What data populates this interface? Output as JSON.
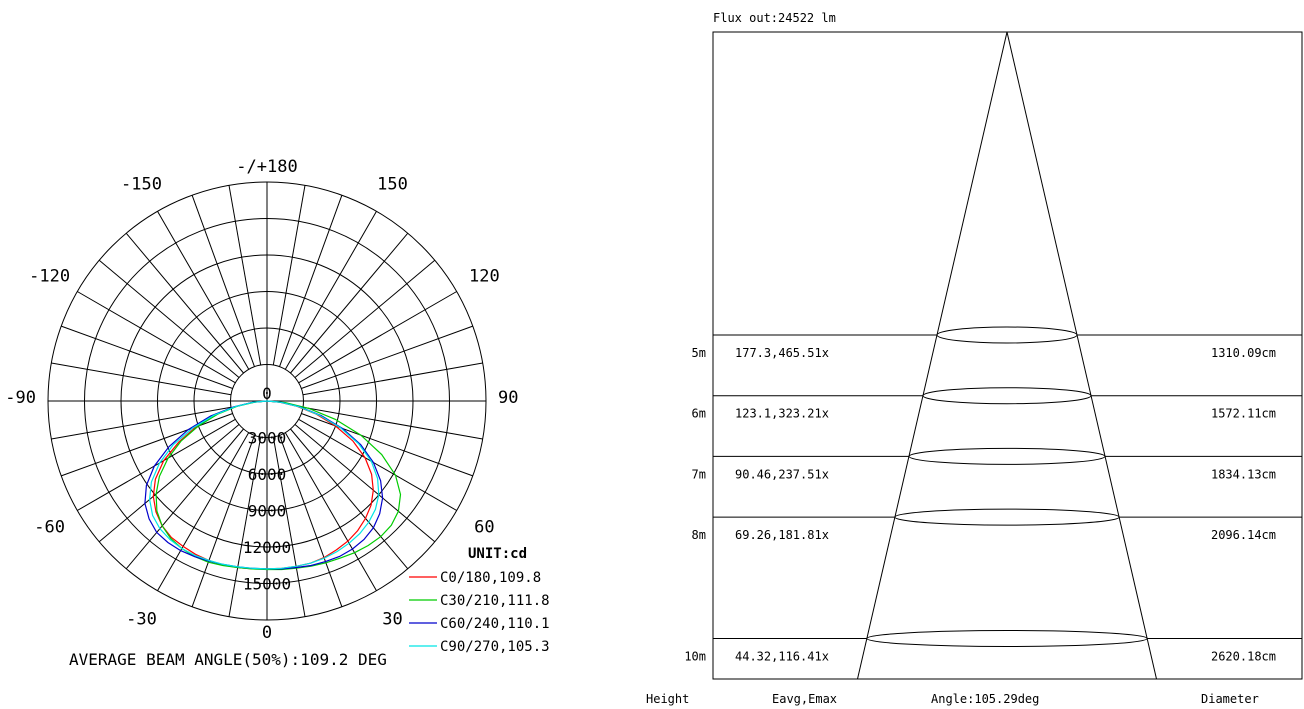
{
  "chart_data": [
    {
      "type": "polar",
      "title": "AVERAGE BEAM ANGLE(50%):109.2 DEG",
      "unit_label": "UNIT:cd",
      "max_value": 18000,
      "radial_ticks": [
        3000,
        6000,
        9000,
        12000,
        15000
      ],
      "radial_tick_labels": [
        "3000",
        "6000",
        "9000",
        "12000",
        "15000"
      ],
      "center_label": "0",
      "angle_labels": [
        {
          "angle": 180,
          "text": "-/+180"
        },
        {
          "angle": -150,
          "text": "-150"
        },
        {
          "angle": 150,
          "text": "150"
        },
        {
          "angle": -120,
          "text": "-120"
        },
        {
          "angle": 120,
          "text": "120"
        },
        {
          "angle": -90,
          "text": "-90"
        },
        {
          "angle": 90,
          "text": "90"
        },
        {
          "angle": -60,
          "text": "-60"
        },
        {
          "angle": 60,
          "text": "60"
        },
        {
          "angle": -30,
          "text": "-30"
        },
        {
          "angle": 30,
          "text": "30"
        },
        {
          "angle": 0,
          "text": "0"
        }
      ],
      "series": [
        {
          "name": "C0/180,109.8",
          "color": "#ff0000",
          "points": [
            [
              -90,
              0
            ],
            [
              -85,
              1100
            ],
            [
              -80,
              2600
            ],
            [
              -75,
              4300
            ],
            [
              -70,
              6200
            ],
            [
              -65,
              8000
            ],
            [
              -60,
              9800
            ],
            [
              -55,
              11200
            ],
            [
              -50,
              12200
            ],
            [
              -45,
              12900
            ],
            [
              -40,
              13400
            ],
            [
              -35,
              13700
            ],
            [
              -30,
              13800
            ],
            [
              -25,
              13900
            ],
            [
              -20,
              13950
            ],
            [
              -15,
              13950
            ],
            [
              -10,
              13900
            ],
            [
              -5,
              13850
            ],
            [
              0,
              13800
            ],
            [
              5,
              13800
            ],
            [
              10,
              13800
            ],
            [
              15,
              13800
            ],
            [
              20,
              13700
            ],
            [
              25,
              13500
            ],
            [
              30,
              13300
            ],
            [
              35,
              13000
            ],
            [
              40,
              12600
            ],
            [
              45,
              12100
            ],
            [
              50,
              11400
            ],
            [
              55,
              10500
            ],
            [
              60,
              9300
            ],
            [
              65,
              7800
            ],
            [
              70,
              6000
            ],
            [
              75,
              4200
            ],
            [
              80,
              2500
            ],
            [
              85,
              1000
            ],
            [
              90,
              0
            ]
          ]
        },
        {
          "name": "C30/210,111.8",
          "color": "#00cc00",
          "points": [
            [
              -90,
              0
            ],
            [
              -85,
              1000
            ],
            [
              -80,
              2500
            ],
            [
              -75,
              4200
            ],
            [
              -70,
              6000
            ],
            [
              -65,
              7800
            ],
            [
              -60,
              9400
            ],
            [
              -55,
              10800
            ],
            [
              -50,
              11900
            ],
            [
              -45,
              12800
            ],
            [
              -40,
              13400
            ],
            [
              -35,
              13800
            ],
            [
              -30,
              14000
            ],
            [
              -25,
              14100
            ],
            [
              -20,
              14100
            ],
            [
              -15,
              14000
            ],
            [
              -10,
              13900
            ],
            [
              -5,
              13850
            ],
            [
              0,
              13850
            ],
            [
              5,
              13900
            ],
            [
              10,
              13950
            ],
            [
              15,
              14050
            ],
            [
              20,
              14150
            ],
            [
              25,
              14250
            ],
            [
              30,
              14400
            ],
            [
              35,
              14500
            ],
            [
              40,
              14550
            ],
            [
              45,
              14450
            ],
            [
              50,
              14100
            ],
            [
              55,
              13400
            ],
            [
              60,
              12200
            ],
            [
              65,
              10400
            ],
            [
              70,
              8200
            ],
            [
              75,
              5800
            ],
            [
              80,
              3500
            ],
            [
              85,
              1500
            ],
            [
              90,
              0
            ]
          ]
        },
        {
          "name": "C60/240,110.1",
          "color": "#0000cc",
          "points": [
            [
              -90,
              0
            ],
            [
              -85,
              1200
            ],
            [
              -80,
              2800
            ],
            [
              -75,
              4800
            ],
            [
              -70,
              6900
            ],
            [
              -65,
              8900
            ],
            [
              -60,
              10700
            ],
            [
              -55,
              12100
            ],
            [
              -50,
              13100
            ],
            [
              -45,
              13700
            ],
            [
              -40,
              14100
            ],
            [
              -35,
              14200
            ],
            [
              -30,
              14200
            ],
            [
              -25,
              14100
            ],
            [
              -20,
              14000
            ],
            [
              -15,
              13900
            ],
            [
              -10,
              13850
            ],
            [
              -5,
              13800
            ],
            [
              0,
              13800
            ],
            [
              5,
              13850
            ],
            [
              10,
              13900
            ],
            [
              15,
              14000
            ],
            [
              20,
              14050
            ],
            [
              25,
              14100
            ],
            [
              30,
              14050
            ],
            [
              35,
              13900
            ],
            [
              40,
              13600
            ],
            [
              45,
              13100
            ],
            [
              50,
              12400
            ],
            [
              55,
              11400
            ],
            [
              60,
              10100
            ],
            [
              65,
              8500
            ],
            [
              70,
              6600
            ],
            [
              75,
              4600
            ],
            [
              80,
              2700
            ],
            [
              85,
              1100
            ],
            [
              90,
              0
            ]
          ]
        },
        {
          "name": "C90/270,105.3",
          "color": "#00e5e5",
          "points": [
            [
              -90,
              0
            ],
            [
              -85,
              1100
            ],
            [
              -80,
              2600
            ],
            [
              -75,
              4500
            ],
            [
              -70,
              6500
            ],
            [
              -65,
              8500
            ],
            [
              -60,
              10200
            ],
            [
              -55,
              11600
            ],
            [
              -50,
              12600
            ],
            [
              -45,
              13300
            ],
            [
              -40,
              13700
            ],
            [
              -35,
              13900
            ],
            [
              -30,
              14000
            ],
            [
              -25,
              14000
            ],
            [
              -20,
              13950
            ],
            [
              -15,
              13900
            ],
            [
              -10,
              13850
            ],
            [
              -5,
              13800
            ],
            [
              0,
              13800
            ],
            [
              5,
              13800
            ],
            [
              10,
              13800
            ],
            [
              15,
              13800
            ],
            [
              20,
              13750
            ],
            [
              25,
              13650
            ],
            [
              30,
              13500
            ],
            [
              35,
              13300
            ],
            [
              40,
              13000
            ],
            [
              45,
              12600
            ],
            [
              50,
              12000
            ],
            [
              55,
              11100
            ],
            [
              60,
              9900
            ],
            [
              65,
              8300
            ],
            [
              70,
              6400
            ],
            [
              75,
              4400
            ],
            [
              80,
              2600
            ],
            [
              85,
              1050
            ],
            [
              90,
              0
            ]
          ]
        }
      ]
    },
    {
      "type": "table",
      "title": "Flux out:24522 lm",
      "footer": {
        "height": "Height",
        "values": "Eavg,Emax",
        "angle": "Angle:105.29deg",
        "diameter": "Diameter"
      },
      "rows": [
        {
          "height_m": 5,
          "height": "5m",
          "values": "177.3,465.51x",
          "diameter": "1310.09cm"
        },
        {
          "height_m": 6,
          "height": "6m",
          "values": "123.1,323.21x",
          "diameter": "1572.11cm"
        },
        {
          "height_m": 7,
          "height": "7m",
          "values": "90.46,237.51x",
          "diameter": "1834.13cm"
        },
        {
          "height_m": 8,
          "height": "8m",
          "values": "69.26,181.81x",
          "diameter": "2096.14cm"
        },
        {
          "height_m": 10,
          "height": "10m",
          "values": "44.32,116.41x",
          "diameter": "2620.18cm"
        }
      ]
    }
  ]
}
